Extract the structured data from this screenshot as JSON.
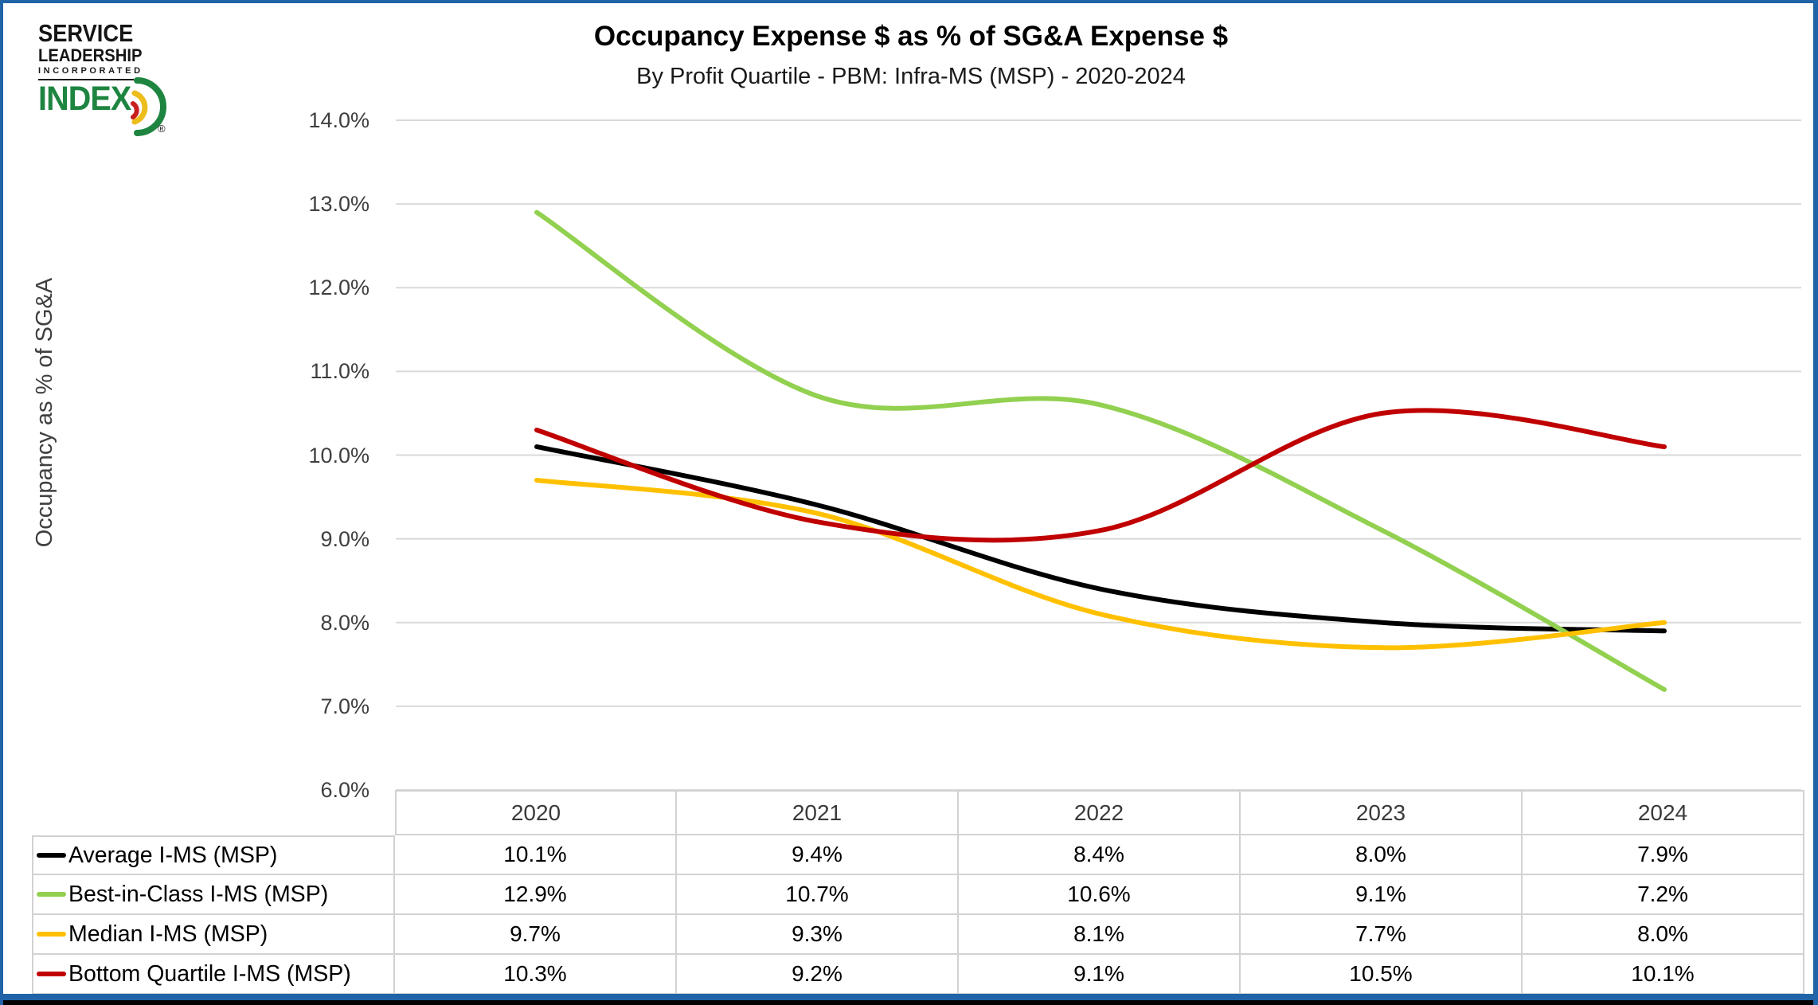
{
  "page": {
    "border_color": "#2063A7",
    "background": "#FFFFFF"
  },
  "logo": {
    "line1": "SERVICE",
    "line2": "LEADERSHIP",
    "line3": "INCORPORATED",
    "wordmark": "INDEX",
    "registered_mark": "®",
    "wordmark_color": "#1E8540",
    "swoosh_colors": [
      "#1E8540",
      "#EDBD1C",
      "#C8201E"
    ]
  },
  "header": {
    "title": "Occupancy Expense $ as % of SG&A Expense $",
    "subtitle": "By Profit Quartile - PBM: Infra-MS (MSP) - 2020-2024"
  },
  "chart_data": {
    "type": "line",
    "smooth": true,
    "title": "Occupancy Expense $ as % of SG&A Expense $",
    "subtitle": "By Profit Quartile - PBM: Infra-MS (MSP) - 2020-2024",
    "xlabel": "",
    "ylabel": "Occupancy as % of SG&A",
    "ylim": [
      6.0,
      14.0
    ],
    "ytick_step": 1.0,
    "grid": true,
    "gridline_color": "#D9D9D9",
    "legend_position": "data-table-left",
    "y_ticks": [
      {
        "value": 14.0,
        "label": "14.0%"
      },
      {
        "value": 13.0,
        "label": "13.0%"
      },
      {
        "value": 12.0,
        "label": "12.0%"
      },
      {
        "value": 11.0,
        "label": "11.0%"
      },
      {
        "value": 10.0,
        "label": "10.0%"
      },
      {
        "value": 9.0,
        "label": "9.0%"
      },
      {
        "value": 8.0,
        "label": "8.0%"
      },
      {
        "value": 7.0,
        "label": "7.0%"
      },
      {
        "value": 6.0,
        "label": "6.0%"
      }
    ],
    "categories": [
      "2020",
      "2021",
      "2022",
      "2023",
      "2024"
    ],
    "series": [
      {
        "name": "Average I-MS (MSP)",
        "color": "#000000",
        "values": [
          10.1,
          9.4,
          8.4,
          8.0,
          7.9
        ],
        "display": [
          "10.1%",
          "9.4%",
          "8.4%",
          "8.0%",
          "7.9%"
        ]
      },
      {
        "name": "Best-in-Class I-MS (MSP)",
        "color": "#92D050",
        "values": [
          12.9,
          10.7,
          10.6,
          9.1,
          7.2
        ],
        "display": [
          "12.9%",
          "10.7%",
          "10.6%",
          "9.1%",
          "7.2%"
        ]
      },
      {
        "name": "Median I-MS (MSP)",
        "color": "#FFC000",
        "values": [
          9.7,
          9.3,
          8.1,
          7.7,
          8.0
        ],
        "display": [
          "9.7%",
          "9.3%",
          "8.1%",
          "7.7%",
          "8.0%"
        ]
      },
      {
        "name": "Bottom Quartile I-MS (MSP)",
        "color": "#C00000",
        "values": [
          10.3,
          9.2,
          9.1,
          10.5,
          10.1
        ],
        "display": [
          "10.3%",
          "9.2%",
          "9.1%",
          "10.5%",
          "10.1%"
        ]
      }
    ]
  }
}
